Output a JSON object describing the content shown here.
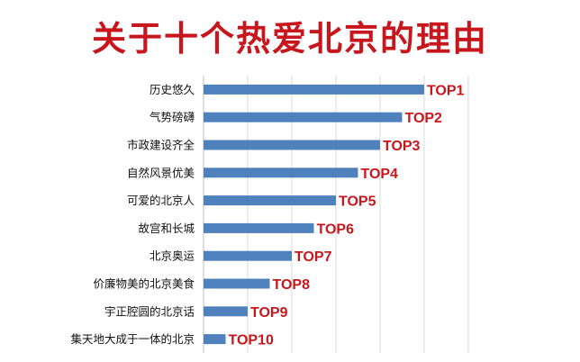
{
  "title": "关于十个热爱北京的理由",
  "chart_data": {
    "type": "bar",
    "orientation": "horizontal",
    "categories": [
      "历史悠久",
      "气势磅礴",
      "市政建设齐全",
      "自然风景优美",
      "可爱的北京人",
      "故宫和长城",
      "北京奥运",
      "价廉物美的北京美食",
      "宇正腔圆的北京话",
      "集天地大成于一体的北京"
    ],
    "values": [
      10,
      9,
      8,
      7,
      6,
      5,
      4,
      3,
      2,
      1
    ],
    "data_labels": [
      "TOP1",
      "TOP2",
      "TOP3",
      "TOP4",
      "TOP5",
      "TOP6",
      "TOP7",
      "TOP8",
      "TOP9",
      "TOP10"
    ],
    "title": "关于十个热爱北京的理由",
    "xlabel": "",
    "ylabel": "",
    "xlim": [
      0,
      12
    ],
    "grid": true,
    "bar_color": "#4f81bd",
    "label_color": "#c8161d",
    "title_color": "#c8161d"
  }
}
